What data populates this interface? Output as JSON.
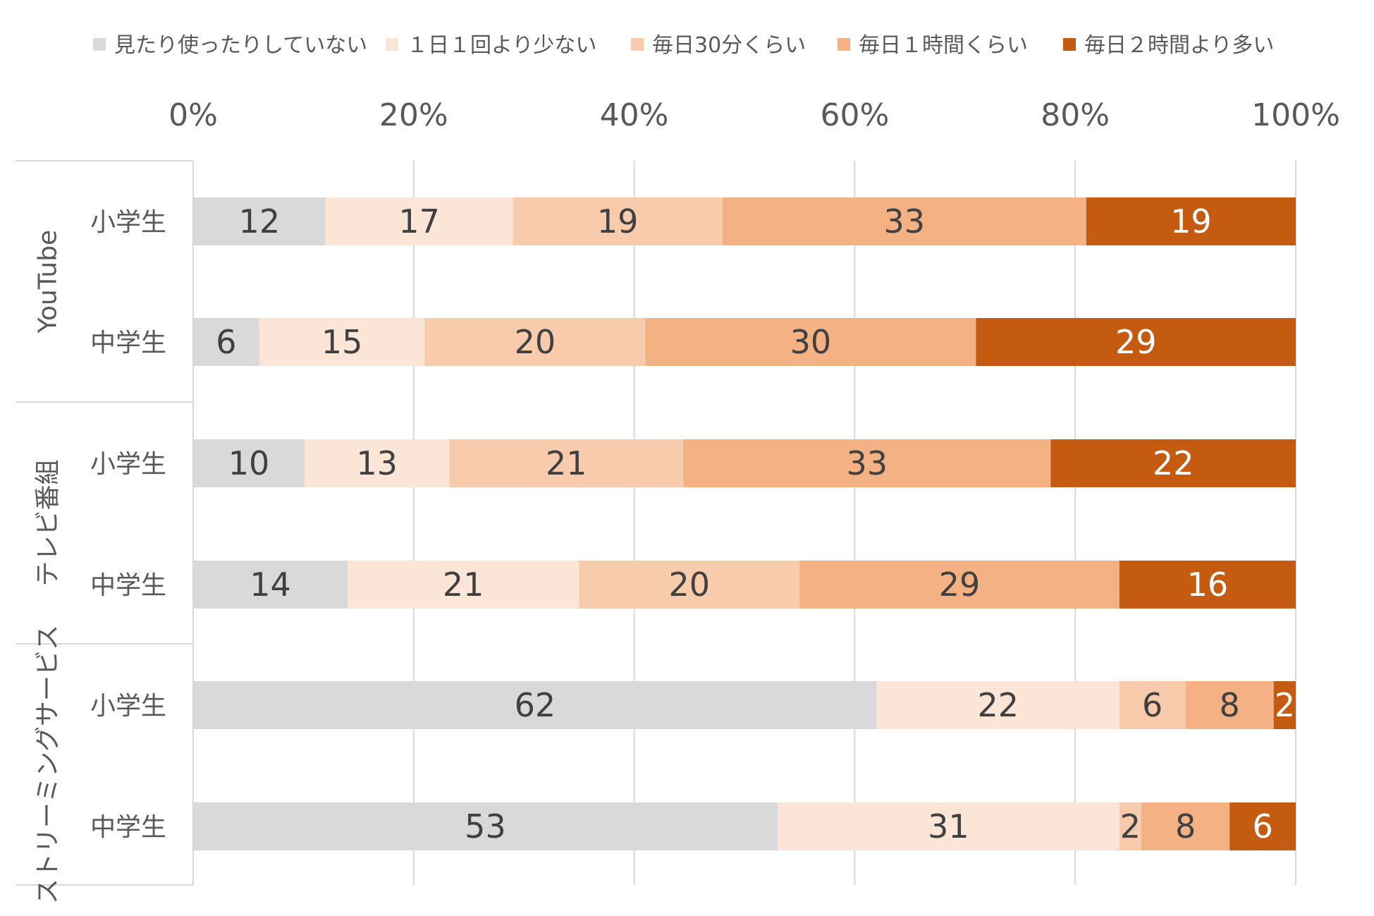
{
  "chart_data": {
    "type": "bar",
    "orientation": "horizontal",
    "stacked": "percent",
    "title": "",
    "xlabel": "",
    "ylabel": "",
    "xlim": [
      0,
      100
    ],
    "x_ticks": [
      "0%",
      "20%",
      "40%",
      "60%",
      "80%",
      "100%"
    ],
    "grid": true,
    "legend_position": "top",
    "legend": [
      {
        "name": "見たり使ったりしていない",
        "color": "#d9d9d9"
      },
      {
        "name": "１日１回より少ない",
        "color": "#fbe5d6"
      },
      {
        "name": "毎日30分くらい",
        "color": "#f8cbad"
      },
      {
        "name": "毎日１時間くらい",
        "color": "#f4b183"
      },
      {
        "name": "毎日２時間より多い",
        "color": "#c55a11"
      }
    ],
    "groups": [
      {
        "name": "YouTube",
        "rows": [
          {
            "label": "小学生",
            "values": [
              12,
              17,
              19,
              33,
              19
            ]
          },
          {
            "label": "中学生",
            "values": [
              6,
              15,
              20,
              30,
              29
            ]
          }
        ]
      },
      {
        "name": "テレビ番組",
        "rows": [
          {
            "label": "小学生",
            "values": [
              10,
              13,
              21,
              33,
              22
            ]
          },
          {
            "label": "中学生",
            "values": [
              14,
              21,
              20,
              29,
              16
            ]
          }
        ]
      },
      {
        "name": "ストリーミングサービス",
        "rows": [
          {
            "label": "小学生",
            "values": [
              62,
              22,
              6,
              8,
              2
            ]
          },
          {
            "label": "中学生",
            "values": [
              53,
              31,
              2,
              8,
              6
            ]
          }
        ]
      }
    ],
    "label_colors": {
      "dark": "#404040",
      "light": "#ffffff"
    }
  }
}
